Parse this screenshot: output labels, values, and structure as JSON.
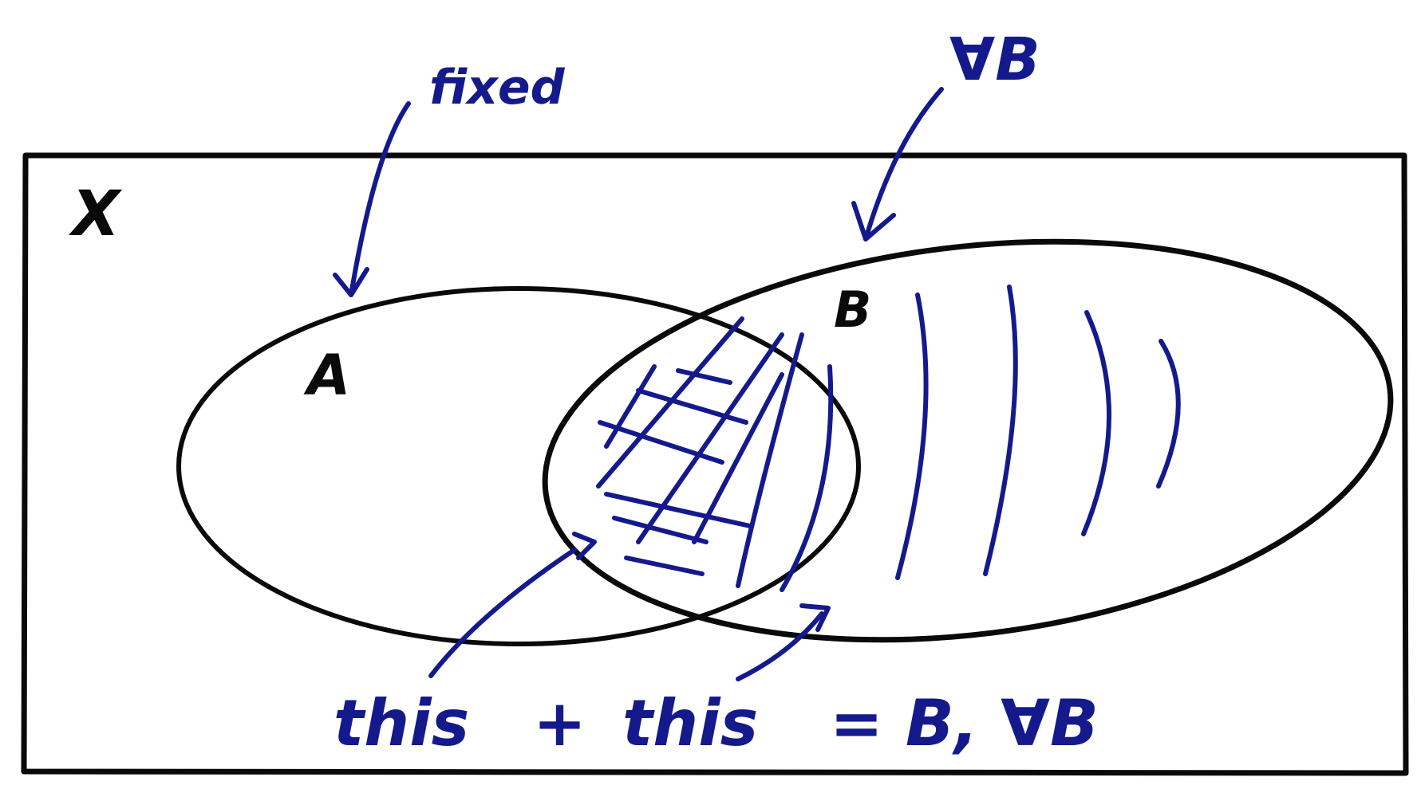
{
  "colors": {
    "black_ink": "#0a0a0a",
    "blue_ink": "#141a8c",
    "background": "#ffffff"
  },
  "labels": {
    "universe": "X",
    "set_a": "A",
    "set_b": "B",
    "note_fixed": "fixed",
    "note_forall": "∀B",
    "caption_this_1": "this",
    "caption_plus": "+",
    "caption_this_2": "this",
    "caption_rest": "= B, ∀B"
  }
}
